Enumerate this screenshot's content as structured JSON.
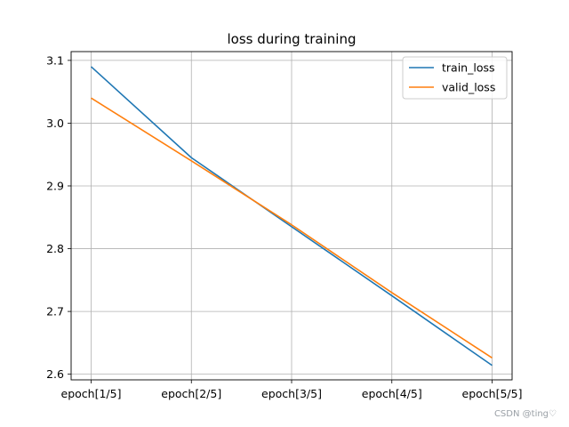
{
  "chart_data": {
    "type": "line",
    "title": "loss during training",
    "categories": [
      "epoch[1/5]",
      "epoch[2/5]",
      "epoch[3/5]",
      "epoch[4/5]",
      "epoch[5/5]"
    ],
    "series": [
      {
        "name": "train_loss",
        "color": "#1f77b4",
        "values": [
          3.09,
          2.945,
          2.835,
          2.725,
          2.614
        ]
      },
      {
        "name": "valid_loss",
        "color": "#ff7f0e",
        "values": [
          3.04,
          2.94,
          2.838,
          2.73,
          2.626
        ]
      }
    ],
    "yticks": [
      "2.6",
      "2.7",
      "2.8",
      "2.9",
      "3.0",
      "3.1"
    ],
    "ylim": [
      2.591,
      3.114
    ],
    "grid": true,
    "legend_position": "top-right"
  },
  "watermark": "CSDN @ting♡"
}
